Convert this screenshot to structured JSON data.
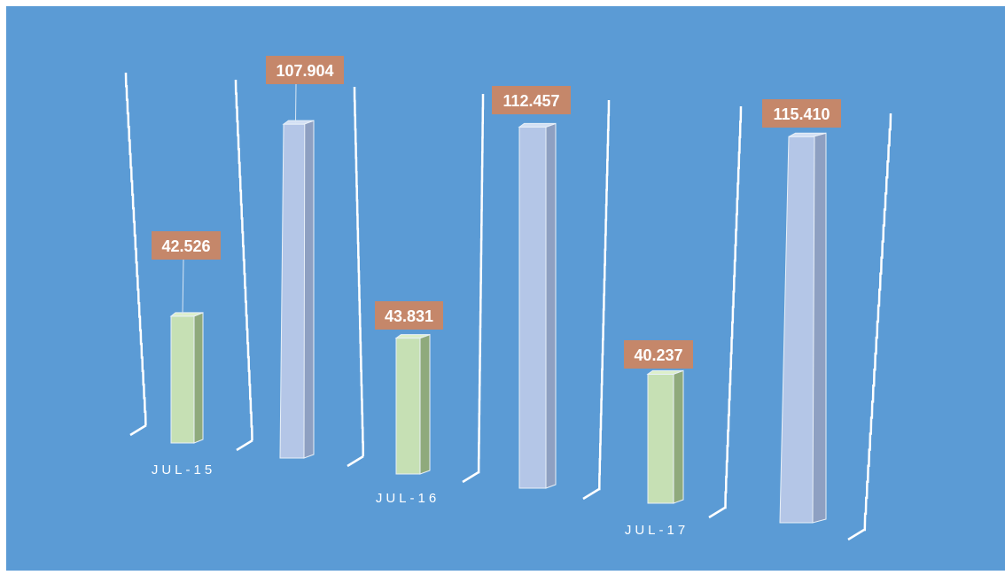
{
  "chart_data": {
    "type": "bar",
    "title": "",
    "xlabel": "",
    "ylabel": "",
    "ylim": [
      0,
      120
    ],
    "grid": true,
    "legend": "none",
    "categories": [
      "JUL-15",
      "JUL-16",
      "JUL-17"
    ],
    "series": [
      {
        "values": [
          42.526,
          43.831,
          40.237
        ],
        "color": "#c6e0b4"
      },
      {
        "values": [
          107.904,
          112.457,
          115.41
        ],
        "color": "#b4c6e7"
      }
    ],
    "data_labels": [
      "42.526",
      "107.904",
      "43.831",
      "112.457",
      "40.237",
      "115.410"
    ],
    "colors": {
      "background": "#5b9bd5",
      "label_box": "#c5876a",
      "label_text": "#ffffff",
      "gridline": "#ffffff"
    }
  }
}
